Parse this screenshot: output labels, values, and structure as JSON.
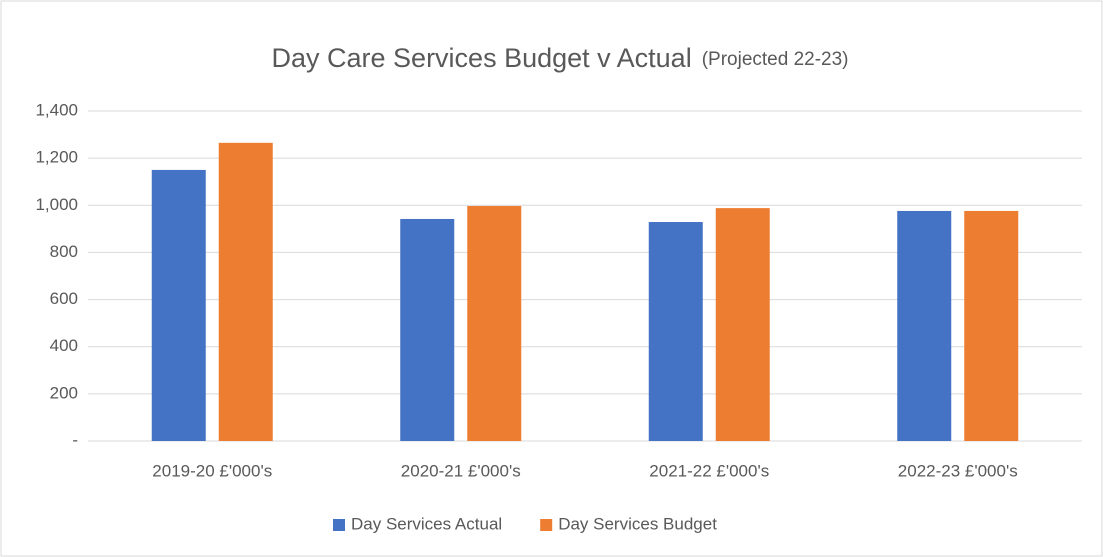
{
  "chart_data": {
    "type": "bar",
    "title": "Day Care Services Budget v Actual",
    "subtitle": "(Projected 22-23)",
    "categories": [
      "2019-20 £'000's",
      "2020-21 £'000's",
      "2021-22 £'000's",
      "2022-23 £'000's"
    ],
    "series": [
      {
        "name": "Day Services Actual",
        "color": "#4472c4",
        "values": [
          1150,
          942,
          929,
          976
        ]
      },
      {
        "name": "Day Services Budget",
        "color": "#ed7d31",
        "values": [
          1265,
          997,
          988,
          976
        ]
      }
    ],
    "ylim": [
      0,
      1400
    ],
    "yticks": [
      {
        "value": 0,
        "label": "-"
      },
      200,
      400,
      600,
      800,
      {
        "value": 1000,
        "label": "1,000"
      },
      {
        "value": 1200,
        "label": "1,200"
      },
      {
        "value": 1400,
        "label": "1,400"
      }
    ],
    "grid": true,
    "legend": "bottom"
  }
}
